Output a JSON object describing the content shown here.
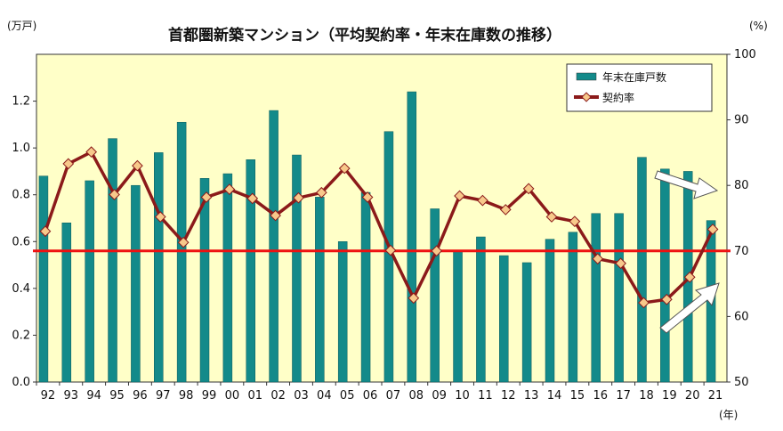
{
  "chart_data": {
    "type": "bar",
    "title": "首都圏新築マンション（平均契約率・年末在庫数の推移）",
    "y_left_unit": "(万戸)",
    "y_right_unit": "(%)",
    "x_unit": "(年)",
    "categories": [
      "92",
      "93",
      "94",
      "95",
      "96",
      "97",
      "98",
      "99",
      "00",
      "01",
      "02",
      "03",
      "04",
      "05",
      "06",
      "07",
      "08",
      "09",
      "10",
      "11",
      "12",
      "13",
      "14",
      "15",
      "16",
      "17",
      "18",
      "19",
      "20",
      "21"
    ],
    "ylim_left": [
      0,
      1.4
    ],
    "yticks_left": [
      "0.0",
      "0.2",
      "0.4",
      "0.6",
      "0.8",
      "1.0",
      "1.2"
    ],
    "ylim_right": [
      50,
      100
    ],
    "yticks_right": [
      "50",
      "60",
      "70",
      "80",
      "90",
      "100"
    ],
    "legend_position": "top-right",
    "grid": false,
    "series": [
      {
        "name": "年末在庫戸数",
        "type": "bar",
        "axis": "left",
        "color": "#138a8a",
        "values": [
          0.88,
          0.68,
          0.86,
          1.04,
          0.84,
          0.98,
          1.11,
          0.87,
          0.89,
          0.95,
          1.16,
          0.97,
          0.79,
          0.6,
          0.81,
          1.07,
          1.24,
          0.74,
          0.56,
          0.62,
          0.54,
          0.51,
          0.61,
          0.64,
          0.72,
          0.72,
          0.96,
          0.91,
          0.9,
          0.69
        ]
      },
      {
        "name": "契約率",
        "type": "line",
        "axis": "right",
        "color": "#8b1a1a",
        "marker_color": "#f7c88a",
        "values": [
          73.0,
          83.3,
          85.1,
          78.6,
          83.0,
          75.2,
          71.3,
          78.2,
          79.4,
          78.0,
          75.4,
          78.1,
          78.9,
          82.6,
          78.2,
          70.1,
          62.8,
          70.0,
          78.4,
          77.7,
          76.3,
          79.5,
          75.2,
          74.5,
          68.8,
          68.1,
          62.1,
          62.6,
          66.0,
          73.3
        ]
      }
    ],
    "reference_line": {
      "axis": "right",
      "value": 70,
      "color": "#ee1111"
    },
    "arrows": {
      "color": "#ffffff",
      "outline": "#555555"
    }
  }
}
